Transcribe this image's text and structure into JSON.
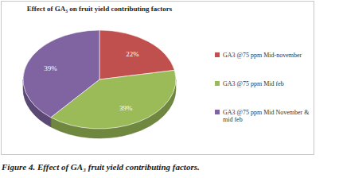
{
  "chart_data": {
    "type": "pie",
    "title": "Effect of GA₃ on fruit yield contributing factors",
    "categories": [
      "GA3 @75 ppm Mid-november",
      "GA3 @75 ppm Mid feb",
      "GA3 @75 ppm Mid November & mid feb"
    ],
    "values": [
      22,
      39,
      39
    ],
    "value_labels": [
      "22%",
      "39%",
      "39%"
    ],
    "colors": [
      "#c0504d",
      "#9bbb59",
      "#8064a2"
    ],
    "data_labels": true,
    "legend": "right",
    "caption": "Figure 4. Effect of GA₃ fruit yield contributing factors."
  }
}
